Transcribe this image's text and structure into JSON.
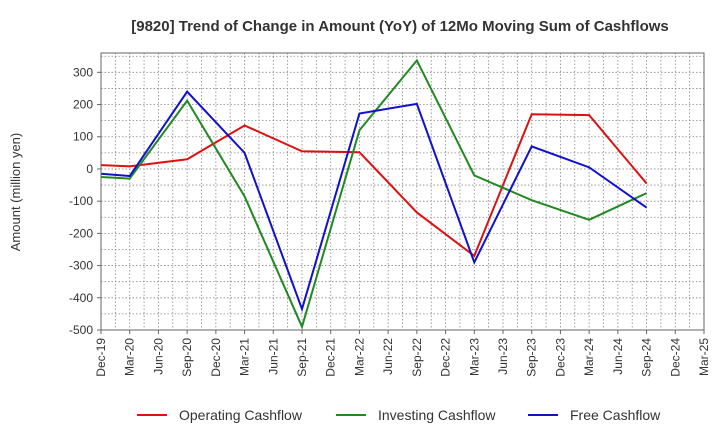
{
  "chart_data": {
    "type": "line",
    "title": "[9820]  Trend of Change in Amount (YoY) of 12Mo Moving Sum of Cashflows",
    "xlabel": "",
    "ylabel": "Amount (million yen)",
    "ylim": [
      -500,
      360
    ],
    "yticks": [
      -500,
      -400,
      -300,
      -200,
      -100,
      0,
      100,
      200,
      300
    ],
    "categories": [
      "Dec-19",
      "Mar-20",
      "Jun-20",
      "Sep-20",
      "Dec-20",
      "Mar-21",
      "Jun-21",
      "Sep-21",
      "Dec-21",
      "Mar-22",
      "Jun-22",
      "Sep-22",
      "Dec-22",
      "Mar-23",
      "Jun-23",
      "Sep-23",
      "Dec-23",
      "Mar-24",
      "Jun-24",
      "Sep-24",
      "Dec-24",
      "Mar-25"
    ],
    "grid": true,
    "legend_position": "bottom",
    "series": [
      {
        "name": "Operating Cashflow",
        "color": "#dd1111",
        "values": [
          12,
          8,
          null,
          30,
          null,
          135,
          null,
          55,
          null,
          52,
          null,
          -135,
          null,
          -270,
          null,
          170,
          null,
          167,
          null,
          -45,
          null,
          null
        ]
      },
      {
        "name": "Investing Cashflow",
        "color": "#228822",
        "values": [
          -25,
          -30,
          null,
          212,
          null,
          -85,
          null,
          -490,
          null,
          120,
          null,
          337,
          null,
          -20,
          null,
          -97,
          null,
          -158,
          null,
          -75,
          null,
          null
        ]
      },
      {
        "name": "Free Cashflow",
        "color": "#1111cc",
        "values": [
          -15,
          -22,
          null,
          240,
          null,
          50,
          null,
          -435,
          null,
          172,
          null,
          202,
          null,
          -290,
          null,
          70,
          null,
          5,
          null,
          -120,
          null,
          null
        ]
      }
    ]
  }
}
